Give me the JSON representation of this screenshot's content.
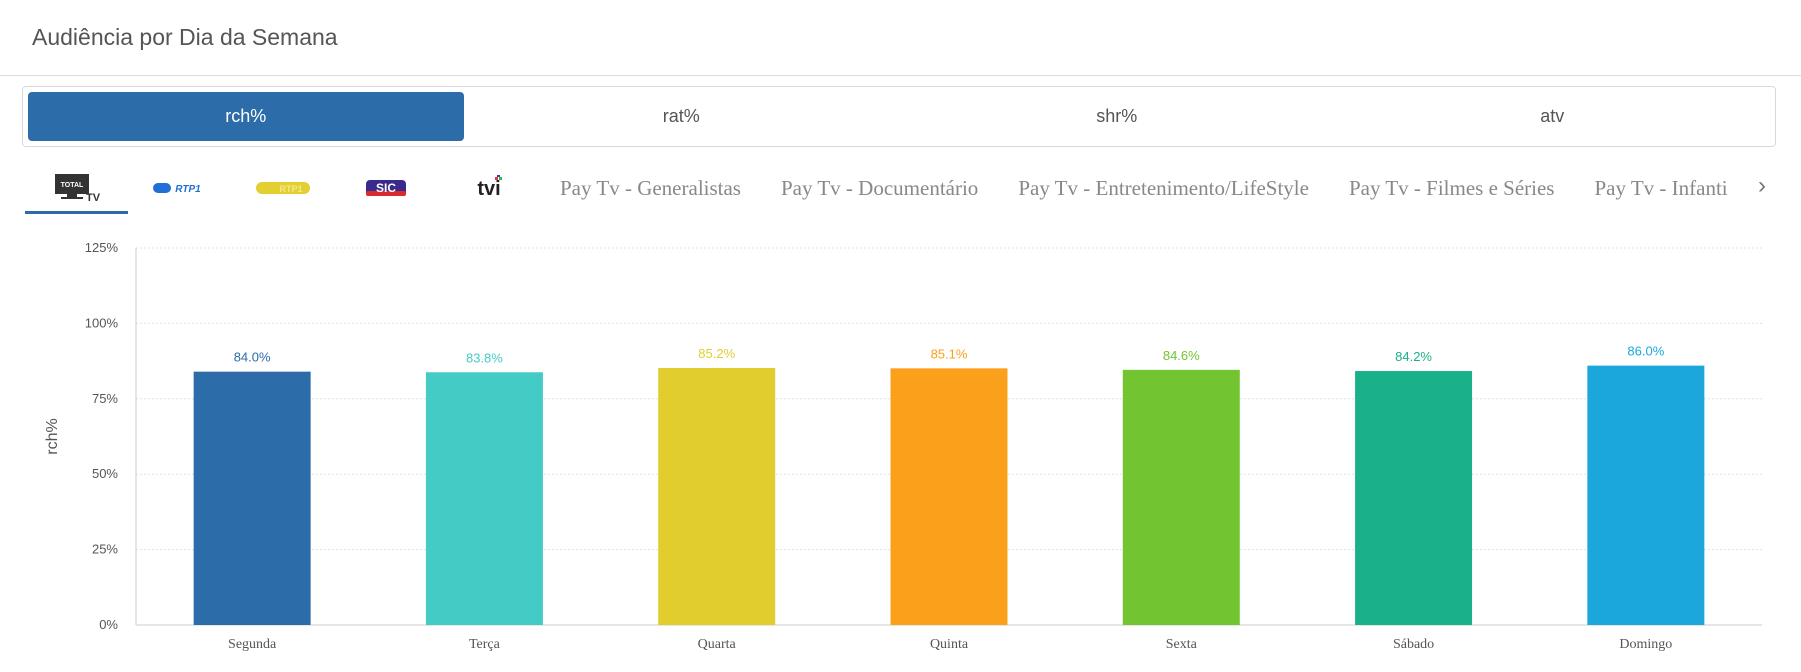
{
  "header": {
    "title": "Audiência por Dia da Semana"
  },
  "metric_tabs": [
    {
      "label": "rch%",
      "active": true
    },
    {
      "label": "rat%",
      "active": false
    },
    {
      "label": "shr%",
      "active": false
    },
    {
      "label": "atv",
      "active": false
    }
  ],
  "channel_logos": [
    {
      "name": "total-tv-logo",
      "text": "TOTAL TV",
      "color": "#333333",
      "active": true
    },
    {
      "name": "rtp1-logo",
      "text": "RTP1",
      "color": "#1f6fd6",
      "active": false
    },
    {
      "name": "rtp1-alt-logo",
      "text": "RTP1",
      "color": "#e3cf30",
      "active": false
    },
    {
      "name": "sic-logo",
      "text": "SIC",
      "color": "#3a2a8c",
      "active": false
    },
    {
      "name": "tvi-logo",
      "text": "tvi",
      "color": "#222222",
      "active": false
    }
  ],
  "channel_tabs": [
    "Pay Tv - Generalistas",
    "Pay Tv - Documentário",
    "Pay Tv - Entretenimento/LifeStyle",
    "Pay Tv - Filmes e Séries",
    "Pay Tv - Infanti"
  ],
  "next_arrow": "›",
  "chart_data": {
    "type": "bar",
    "title": "",
    "xlabel": "",
    "ylabel": "rch%",
    "categories": [
      "Segunda",
      "Terça",
      "Quarta",
      "Quinta",
      "Sexta",
      "Sábado",
      "Domingo"
    ],
    "values": [
      84.0,
      83.8,
      85.2,
      85.1,
      84.6,
      84.2,
      86.0
    ],
    "data_labels": [
      "84.0%",
      "83.8%",
      "85.2%",
      "85.1%",
      "84.6%",
      "84.2%",
      "86.0%"
    ],
    "colors": [
      "#2c6ca8",
      "#45cbc6",
      "#e2cd2f",
      "#fba01b",
      "#72c430",
      "#1ab08a",
      "#1ba7dc"
    ],
    "yticks": [
      0,
      25,
      50,
      75,
      100,
      125
    ],
    "ytick_labels": [
      "0%",
      "25%",
      "50%",
      "75%",
      "100%",
      "125%"
    ],
    "ylim": [
      0,
      125
    ],
    "grid": true,
    "legend": false
  }
}
